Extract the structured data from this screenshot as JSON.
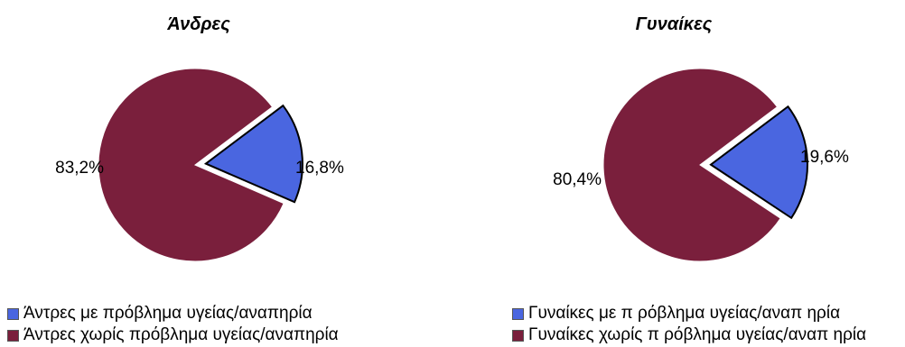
{
  "chart_data": [
    {
      "type": "pie",
      "title": "Άνδρες",
      "slices": [
        {
          "label": "Άντρες με πρόβλημα υγείας/αναπηρία",
          "value": 16.8,
          "label_text": "16,8%",
          "color": "#4a66e0",
          "exploded": true
        },
        {
          "label": "Άντρες χωρίς πρόβλημα υγείας/αναπηρία",
          "value": 83.2,
          "label_text": "83,2%",
          "color": "#7a1f3c",
          "exploded": false
        }
      ],
      "legend": [
        "Άντρες με πρόβλημα υγείας/αναπηρία",
        "Άντρες χωρίς πρόβλημα υγείας/αναπηρία"
      ],
      "legend_position": "bottom"
    },
    {
      "type": "pie",
      "title": "Γυναίκες",
      "slices": [
        {
          "label": "Γυναίκες με π ρόβλημα υγείας/αναπ ηρία",
          "value": 19.6,
          "label_text": "19,6%",
          "color": "#4a66e0",
          "exploded": true
        },
        {
          "label": "Γυναίκες χωρίς π ρόβλημα υγείας/αναπ ηρία",
          "value": 80.4,
          "label_text": "80,4%",
          "color": "#7a1f3c",
          "exploded": false
        }
      ],
      "legend": [
        "Γυναίκες με π ρόβλημα υγείας/αναπ ηρία",
        "Γυναίκες χωρίς π ρόβλημα υγείας/αναπ ηρία"
      ],
      "legend_position": "bottom"
    }
  ]
}
